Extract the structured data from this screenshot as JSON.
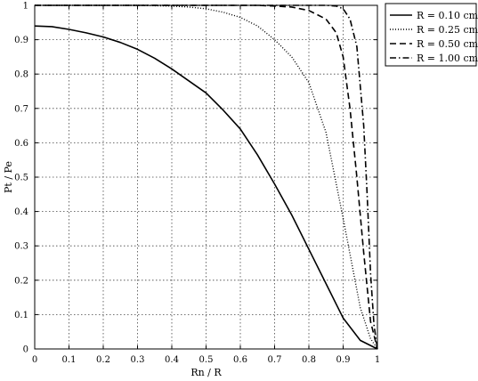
{
  "chart_data": {
    "type": "line",
    "xlabel": "Rn / R",
    "ylabel": "Pt / Pe",
    "xlim": [
      0,
      1
    ],
    "ylim": [
      0,
      1
    ],
    "xticks": [
      "0",
      "0.1",
      "0.2",
      "0.3",
      "0.4",
      "0.5",
      "0.6",
      "0.7",
      "0.8",
      "0.9",
      "1"
    ],
    "yticks": [
      "0",
      "0.1",
      "0.2",
      "0.3",
      "0.4",
      "0.5",
      "0.6",
      "0.7",
      "0.8",
      "0.9",
      "1"
    ],
    "grid": true,
    "legend_position": "top-right",
    "series": [
      {
        "name": "R = 0.10 cm",
        "style": "solid",
        "color": "#000000",
        "x": [
          0,
          0.05,
          0.1,
          0.15,
          0.2,
          0.25,
          0.3,
          0.35,
          0.4,
          0.45,
          0.5,
          0.55,
          0.6,
          0.65,
          0.7,
          0.75,
          0.8,
          0.85,
          0.9,
          0.95,
          1.0
        ],
        "y": [
          0.94,
          0.938,
          0.93,
          0.92,
          0.908,
          0.892,
          0.872,
          0.846,
          0.815,
          0.78,
          0.745,
          0.695,
          0.64,
          0.565,
          0.48,
          0.39,
          0.29,
          0.19,
          0.09,
          0.025,
          0.0
        ]
      },
      {
        "name": "R = 0.25 cm",
        "style": "dotted",
        "color": "#000000",
        "x": [
          0,
          0.3,
          0.4,
          0.45,
          0.5,
          0.55,
          0.6,
          0.65,
          0.7,
          0.75,
          0.8,
          0.85,
          0.9,
          0.95,
          0.98,
          1.0
        ],
        "y": [
          1.0,
          1.0,
          0.998,
          0.995,
          0.99,
          0.98,
          0.965,
          0.94,
          0.9,
          0.85,
          0.775,
          0.63,
          0.38,
          0.12,
          0.03,
          0.0
        ]
      },
      {
        "name": "R = 0.50 cm",
        "style": "dashed",
        "color": "#000000",
        "x": [
          0,
          0.65,
          0.7,
          0.75,
          0.8,
          0.85,
          0.88,
          0.9,
          0.92,
          0.94,
          0.96,
          0.98,
          1.0
        ],
        "y": [
          1.0,
          1.0,
          0.998,
          0.995,
          0.985,
          0.96,
          0.92,
          0.85,
          0.7,
          0.5,
          0.28,
          0.08,
          0.0
        ]
      },
      {
        "name": "R = 1.00 cm",
        "style": "dashdot",
        "color": "#000000",
        "x": [
          0,
          0.85,
          0.88,
          0.9,
          0.92,
          0.94,
          0.96,
          0.97,
          0.98,
          0.99,
          1.0
        ],
        "y": [
          1.0,
          1.0,
          0.998,
          0.99,
          0.96,
          0.88,
          0.65,
          0.45,
          0.22,
          0.07,
          0.0
        ]
      }
    ]
  }
}
